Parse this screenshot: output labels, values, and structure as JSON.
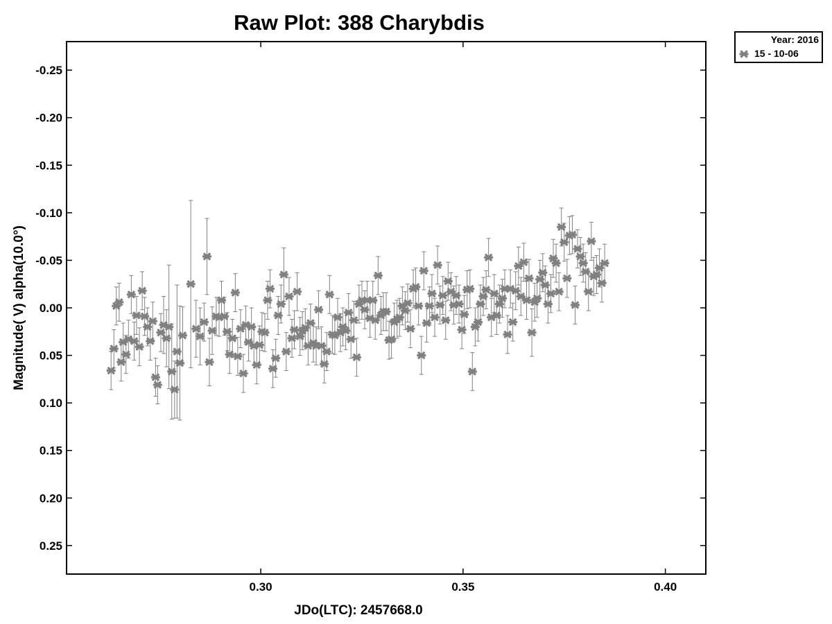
{
  "chart_data": {
    "type": "scatter",
    "title": "Raw Plot: 388 Charybdis",
    "xlabel": "JDo(LTC): 2457668.0",
    "ylabel": "Magnitude( V) alpha(10.0°)",
    "xlim": [
      0.252,
      0.41
    ],
    "ylim": [
      0.28,
      -0.28
    ],
    "y_inverted": true,
    "x_ticks": [
      0.3,
      0.35,
      0.4
    ],
    "x_tick_labels": [
      "0.30",
      "0.35",
      "0.40"
    ],
    "y_ticks": [
      -0.25,
      -0.2,
      -0.15,
      -0.1,
      -0.05,
      0.0,
      0.05,
      0.1,
      0.15,
      0.2,
      0.25
    ],
    "y_tick_labels": [
      "-0.25",
      "-0.20",
      "-0.15",
      "-0.10",
      "-0.05",
      "0.00",
      "0.05",
      "0.10",
      "0.15",
      "0.20",
      "0.25"
    ],
    "grid": false,
    "legend": {
      "placement": "top-right-outside",
      "title": "Year: 2016",
      "entries": [
        "15 - 10-06"
      ]
    },
    "series": [
      {
        "name": "15 - 10-06",
        "color": "#808080",
        "marker": "asterisk",
        "points": [
          {
            "x": 0.263,
            "y": 0.066,
            "err": 0.02
          },
          {
            "x": 0.2637,
            "y": 0.043,
            "err": 0.02
          },
          {
            "x": 0.2643,
            "y": -0.002,
            "err": 0.02
          },
          {
            "x": 0.265,
            "y": -0.006,
            "err": 0.02
          },
          {
            "x": 0.2655,
            "y": 0.057,
            "err": 0.02
          },
          {
            "x": 0.266,
            "y": 0.036,
            "err": 0.02
          },
          {
            "x": 0.2667,
            "y": 0.049,
            "err": 0.02
          },
          {
            "x": 0.2673,
            "y": 0.033,
            "err": 0.02
          },
          {
            "x": 0.268,
            "y": -0.014,
            "err": 0.02
          },
          {
            "x": 0.2687,
            "y": 0.035,
            "err": 0.02
          },
          {
            "x": 0.2693,
            "y": 0.008,
            "err": 0.02
          },
          {
            "x": 0.27,
            "y": 0.041,
            "err": 0.02
          },
          {
            "x": 0.2707,
            "y": -0.018,
            "err": 0.02
          },
          {
            "x": 0.2713,
            "y": 0.009,
            "err": 0.02
          },
          {
            "x": 0.272,
            "y": 0.02,
            "err": 0.02
          },
          {
            "x": 0.2727,
            "y": 0.035,
            "err": 0.02
          },
          {
            "x": 0.2733,
            "y": 0.014,
            "err": 0.02
          },
          {
            "x": 0.274,
            "y": 0.073,
            "err": 0.02
          },
          {
            "x": 0.2745,
            "y": 0.081,
            "err": 0.02
          },
          {
            "x": 0.2753,
            "y": 0.026,
            "err": 0.02
          },
          {
            "x": 0.276,
            "y": 0.018,
            "err": 0.03
          },
          {
            "x": 0.2767,
            "y": 0.032,
            "err": 0.03
          },
          {
            "x": 0.2773,
            "y": 0.02,
            "err": 0.065
          },
          {
            "x": 0.278,
            "y": 0.067,
            "err": 0.05
          },
          {
            "x": 0.2787,
            "y": 0.086,
            "err": 0.03
          },
          {
            "x": 0.2793,
            "y": 0.046,
            "err": 0.07
          },
          {
            "x": 0.28,
            "y": 0.058,
            "err": 0.06
          },
          {
            "x": 0.2807,
            "y": 0.029,
            "err": 0.03
          },
          {
            "x": 0.2827,
            "y": -0.025,
            "err": 0.088
          },
          {
            "x": 0.284,
            "y": 0.022,
            "err": 0.03
          },
          {
            "x": 0.285,
            "y": 0.03,
            "err": 0.03
          },
          {
            "x": 0.286,
            "y": 0.015,
            "err": 0.02
          },
          {
            "x": 0.2867,
            "y": -0.054,
            "err": 0.04
          },
          {
            "x": 0.2873,
            "y": 0.057,
            "err": 0.025
          },
          {
            "x": 0.288,
            "y": 0.024,
            "err": 0.025
          },
          {
            "x": 0.289,
            "y": 0.009,
            "err": 0.02
          },
          {
            "x": 0.2897,
            "y": 0.01,
            "err": 0.02
          },
          {
            "x": 0.2903,
            "y": -0.008,
            "err": 0.02
          },
          {
            "x": 0.291,
            "y": 0.009,
            "err": 0.02
          },
          {
            "x": 0.2917,
            "y": 0.025,
            "err": 0.02
          },
          {
            "x": 0.2923,
            "y": 0.049,
            "err": 0.02
          },
          {
            "x": 0.293,
            "y": 0.032,
            "err": 0.02
          },
          {
            "x": 0.2937,
            "y": -0.016,
            "err": 0.02
          },
          {
            "x": 0.2943,
            "y": 0.051,
            "err": 0.02
          },
          {
            "x": 0.295,
            "y": 0.022,
            "err": 0.02
          },
          {
            "x": 0.2957,
            "y": 0.069,
            "err": 0.02
          },
          {
            "x": 0.2963,
            "y": 0.018,
            "err": 0.02
          },
          {
            "x": 0.297,
            "y": 0.036,
            "err": 0.02
          },
          {
            "x": 0.2977,
            "y": 0.02,
            "err": 0.02
          },
          {
            "x": 0.2983,
            "y": 0.04,
            "err": 0.02
          },
          {
            "x": 0.299,
            "y": 0.06,
            "err": 0.02
          },
          {
            "x": 0.2997,
            "y": 0.039,
            "err": 0.02
          },
          {
            "x": 0.3003,
            "y": 0.025,
            "err": 0.02
          },
          {
            "x": 0.301,
            "y": 0.026,
            "err": 0.02
          },
          {
            "x": 0.3017,
            "y": -0.008,
            "err": 0.02
          },
          {
            "x": 0.3023,
            "y": -0.02,
            "err": 0.02
          },
          {
            "x": 0.303,
            "y": 0.064,
            "err": 0.02
          },
          {
            "x": 0.3037,
            "y": 0.053,
            "err": 0.02
          },
          {
            "x": 0.3043,
            "y": 0.008,
            "err": 0.02
          },
          {
            "x": 0.305,
            "y": -0.004,
            "err": 0.02
          },
          {
            "x": 0.3057,
            "y": -0.035,
            "err": 0.028
          },
          {
            "x": 0.3063,
            "y": 0.046,
            "err": 0.02
          },
          {
            "x": 0.307,
            "y": -0.012,
            "err": 0.02
          },
          {
            "x": 0.3077,
            "y": 0.032,
            "err": 0.02
          },
          {
            "x": 0.3083,
            "y": 0.023,
            "err": 0.02
          },
          {
            "x": 0.309,
            "y": -0.017,
            "err": 0.02
          },
          {
            "x": 0.3097,
            "y": 0.03,
            "err": 0.02
          },
          {
            "x": 0.3103,
            "y": 0.024,
            "err": 0.02
          },
          {
            "x": 0.311,
            "y": 0.021,
            "err": 0.02
          },
          {
            "x": 0.3117,
            "y": 0.04,
            "err": 0.02
          },
          {
            "x": 0.3123,
            "y": 0.016,
            "err": 0.02
          },
          {
            "x": 0.313,
            "y": 0.037,
            "err": 0.02
          },
          {
            "x": 0.3137,
            "y": 0.04,
            "err": 0.02
          },
          {
            "x": 0.3143,
            "y": 0.002,
            "err": 0.02
          },
          {
            "x": 0.315,
            "y": 0.04,
            "err": 0.02
          },
          {
            "x": 0.3157,
            "y": 0.059,
            "err": 0.02
          },
          {
            "x": 0.3163,
            "y": 0.046,
            "err": 0.02
          },
          {
            "x": 0.317,
            "y": -0.014,
            "err": 0.02
          },
          {
            "x": 0.3177,
            "y": 0.028,
            "err": 0.02
          },
          {
            "x": 0.3183,
            "y": 0.029,
            "err": 0.02
          },
          {
            "x": 0.319,
            "y": 0.01,
            "err": 0.02
          },
          {
            "x": 0.3197,
            "y": 0.026,
            "err": 0.02
          },
          {
            "x": 0.3203,
            "y": 0.02,
            "err": 0.02
          },
          {
            "x": 0.321,
            "y": 0.024,
            "err": 0.02
          },
          {
            "x": 0.3217,
            "y": 0.005,
            "err": 0.02
          },
          {
            "x": 0.3223,
            "y": 0.033,
            "err": 0.02
          },
          {
            "x": 0.323,
            "y": 0.013,
            "err": 0.02
          },
          {
            "x": 0.3237,
            "y": 0.052,
            "err": 0.02
          },
          {
            "x": 0.3243,
            "y": -0.004,
            "err": 0.02
          },
          {
            "x": 0.325,
            "y": -0.008,
            "err": 0.02
          },
          {
            "x": 0.3257,
            "y": 0.002,
            "err": 0.02
          },
          {
            "x": 0.3263,
            "y": -0.008,
            "err": 0.02
          },
          {
            "x": 0.327,
            "y": 0.011,
            "err": 0.02
          },
          {
            "x": 0.3277,
            "y": -0.008,
            "err": 0.02
          },
          {
            "x": 0.3283,
            "y": 0.013,
            "err": 0.02
          },
          {
            "x": 0.329,
            "y": -0.034,
            "err": 0.02
          },
          {
            "x": 0.3297,
            "y": 0.008,
            "err": 0.02
          },
          {
            "x": 0.3303,
            "y": 0.004,
            "err": 0.02
          },
          {
            "x": 0.331,
            "y": 0.004,
            "err": 0.02
          },
          {
            "x": 0.3317,
            "y": 0.034,
            "err": 0.02
          },
          {
            "x": 0.3323,
            "y": 0.033,
            "err": 0.02
          },
          {
            "x": 0.333,
            "y": 0.015,
            "err": 0.02
          },
          {
            "x": 0.3337,
            "y": 0.012,
            "err": 0.02
          },
          {
            "x": 0.3343,
            "y": 0.01,
            "err": 0.02
          },
          {
            "x": 0.335,
            "y": -0.002,
            "err": 0.02
          },
          {
            "x": 0.3357,
            "y": 0.003,
            "err": 0.02
          },
          {
            "x": 0.3363,
            "y": -0.005,
            "err": 0.02
          },
          {
            "x": 0.337,
            "y": 0.022,
            "err": 0.02
          },
          {
            "x": 0.3377,
            "y": -0.02,
            "err": 0.02
          },
          {
            "x": 0.3383,
            "y": -0.022,
            "err": 0.02
          },
          {
            "x": 0.339,
            "y": -0.002,
            "err": 0.02
          },
          {
            "x": 0.3397,
            "y": 0.05,
            "err": 0.02
          },
          {
            "x": 0.3403,
            "y": -0.039,
            "err": 0.02
          },
          {
            "x": 0.341,
            "y": 0.016,
            "err": 0.02
          },
          {
            "x": 0.3417,
            "y": -0.002,
            "err": 0.02
          },
          {
            "x": 0.3423,
            "y": -0.015,
            "err": 0.02
          },
          {
            "x": 0.343,
            "y": 0.01,
            "err": 0.02
          },
          {
            "x": 0.3437,
            "y": -0.045,
            "err": 0.02
          },
          {
            "x": 0.3443,
            "y": -0.003,
            "err": 0.02
          },
          {
            "x": 0.345,
            "y": -0.013,
            "err": 0.02
          },
          {
            "x": 0.3457,
            "y": 0.013,
            "err": 0.02
          },
          {
            "x": 0.3463,
            "y": -0.028,
            "err": 0.02
          },
          {
            "x": 0.347,
            "y": -0.017,
            "err": 0.02
          },
          {
            "x": 0.3477,
            "y": -0.003,
            "err": 0.02
          },
          {
            "x": 0.3483,
            "y": -0.013,
            "err": 0.02
          },
          {
            "x": 0.349,
            "y": -0.004,
            "err": 0.02
          },
          {
            "x": 0.3497,
            "y": 0.023,
            "err": 0.02
          },
          {
            "x": 0.3503,
            "y": 0.007,
            "err": 0.02
          },
          {
            "x": 0.351,
            "y": -0.019,
            "err": 0.02
          },
          {
            "x": 0.3517,
            "y": -0.02,
            "err": 0.02
          },
          {
            "x": 0.3523,
            "y": 0.067,
            "err": 0.02
          },
          {
            "x": 0.353,
            "y": 0.02,
            "err": 0.02
          },
          {
            "x": 0.3537,
            "y": 0.015,
            "err": 0.02
          },
          {
            "x": 0.3543,
            "y": -0.004,
            "err": 0.02
          },
          {
            "x": 0.355,
            "y": -0.012,
            "err": 0.02
          },
          {
            "x": 0.3557,
            "y": -0.019,
            "err": 0.02
          },
          {
            "x": 0.3563,
            "y": -0.053,
            "err": 0.02
          },
          {
            "x": 0.357,
            "y": 0.01,
            "err": 0.02
          },
          {
            "x": 0.3577,
            "y": -0.015,
            "err": 0.02
          },
          {
            "x": 0.3583,
            "y": 0.008,
            "err": 0.02
          },
          {
            "x": 0.359,
            "y": -0.004,
            "err": 0.02
          },
          {
            "x": 0.3597,
            "y": -0.01,
            "err": 0.02
          },
          {
            "x": 0.3603,
            "y": -0.02,
            "err": 0.02
          },
          {
            "x": 0.361,
            "y": 0.028,
            "err": 0.02
          },
          {
            "x": 0.3617,
            "y": -0.02,
            "err": 0.02
          },
          {
            "x": 0.3623,
            "y": 0.015,
            "err": 0.02
          },
          {
            "x": 0.363,
            "y": -0.018,
            "err": 0.02
          },
          {
            "x": 0.3637,
            "y": -0.044,
            "err": 0.02
          },
          {
            "x": 0.3643,
            "y": -0.012,
            "err": 0.02
          },
          {
            "x": 0.365,
            "y": -0.048,
            "err": 0.02
          },
          {
            "x": 0.3657,
            "y": -0.008,
            "err": 0.02
          },
          {
            "x": 0.3663,
            "y": -0.031,
            "err": 0.02
          },
          {
            "x": 0.367,
            "y": 0.026,
            "err": 0.025
          },
          {
            "x": 0.3677,
            "y": -0.006,
            "err": 0.02
          },
          {
            "x": 0.3683,
            "y": -0.01,
            "err": 0.02
          },
          {
            "x": 0.369,
            "y": -0.03,
            "err": 0.02
          },
          {
            "x": 0.3697,
            "y": -0.037,
            "err": 0.02
          },
          {
            "x": 0.3703,
            "y": -0.024,
            "err": 0.02
          },
          {
            "x": 0.371,
            "y": -0.004,
            "err": 0.02
          },
          {
            "x": 0.3717,
            "y": -0.015,
            "err": 0.02
          },
          {
            "x": 0.3723,
            "y": -0.052,
            "err": 0.02
          },
          {
            "x": 0.373,
            "y": -0.047,
            "err": 0.02
          },
          {
            "x": 0.3737,
            "y": -0.017,
            "err": 0.02
          },
          {
            "x": 0.3743,
            "y": -0.085,
            "err": 0.02
          },
          {
            "x": 0.375,
            "y": -0.069,
            "err": 0.02
          },
          {
            "x": 0.3757,
            "y": -0.031,
            "err": 0.02
          },
          {
            "x": 0.3763,
            "y": -0.076,
            "err": 0.02
          },
          {
            "x": 0.377,
            "y": -0.077,
            "err": 0.02
          },
          {
            "x": 0.3777,
            "y": -0.003,
            "err": 0.02
          },
          {
            "x": 0.3783,
            "y": -0.062,
            "err": 0.02
          },
          {
            "x": 0.379,
            "y": -0.054,
            "err": 0.02
          },
          {
            "x": 0.3797,
            "y": -0.047,
            "err": 0.02
          },
          {
            "x": 0.3803,
            "y": -0.038,
            "err": 0.02
          },
          {
            "x": 0.381,
            "y": -0.017,
            "err": 0.02
          },
          {
            "x": 0.3817,
            "y": -0.07,
            "err": 0.02
          },
          {
            "x": 0.3823,
            "y": -0.033,
            "err": 0.02
          },
          {
            "x": 0.383,
            "y": -0.035,
            "err": 0.02
          },
          {
            "x": 0.3837,
            "y": -0.042,
            "err": 0.02
          },
          {
            "x": 0.3843,
            "y": -0.026,
            "err": 0.02
          },
          {
            "x": 0.385,
            "y": -0.047,
            "err": 0.02
          }
        ]
      }
    ]
  }
}
